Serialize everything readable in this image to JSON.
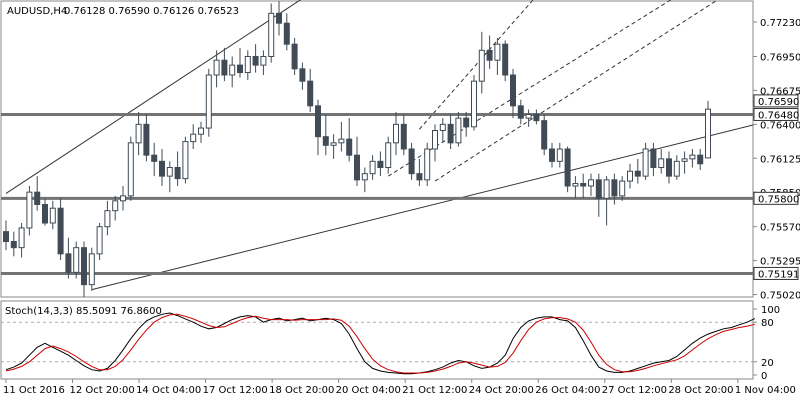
{
  "symbol_label": "AUDUSD,H4",
  "ohlc_label": "0.76128 0.76590 0.76126 0.76523",
  "indicator_label": "Stoch(14,3,3) 85.5091 76.8600",
  "chart_data": [
    {
      "type": "candlestick",
      "title": "AUDUSD,H4",
      "ylim": [
        0.75,
        0.774
      ],
      "y_ticks": [
        "0.77230",
        "0.76950",
        "0.76675",
        "0.76400",
        "0.76125",
        "0.75850",
        "0.75570",
        "0.75295",
        "0.75020"
      ],
      "x_ticks": [
        "11 Oct 2016",
        "12 Oct 20:00",
        "14 Oct 04:00",
        "17 Oct 12:00",
        "18 Oct 20:00",
        "20 Oct 04:00",
        "21 Oct 12:00",
        "24 Oct 20:00",
        "26 Oct 04:00",
        "27 Oct 12:00",
        "28 Oct 20:00",
        "1 Nov 04:00"
      ],
      "horizontal_levels": [
        {
          "label": "0.76480",
          "value": 0.7648
        },
        {
          "label": "0.75800",
          "value": 0.758
        },
        {
          "label": "0.75191",
          "value": 0.75191
        }
      ],
      "overlay_labels": [
        "0.76590"
      ],
      "colors": {
        "up": "#ffffff",
        "down": "#404b55",
        "outline": "#404b55",
        "level": "#737373"
      },
      "candles": [
        {
          "o": 0.7553,
          "h": 0.7562,
          "l": 0.7538,
          "c": 0.7545
        },
        {
          "o": 0.7545,
          "h": 0.7553,
          "l": 0.7533,
          "c": 0.754
        },
        {
          "o": 0.754,
          "h": 0.756,
          "l": 0.7532,
          "c": 0.7556
        },
        {
          "o": 0.7556,
          "h": 0.759,
          "l": 0.755,
          "c": 0.7585
        },
        {
          "o": 0.7585,
          "h": 0.7598,
          "l": 0.757,
          "c": 0.7575
        },
        {
          "o": 0.7575,
          "h": 0.758,
          "l": 0.7558,
          "c": 0.756
        },
        {
          "o": 0.756,
          "h": 0.7578,
          "l": 0.7555,
          "c": 0.7572
        },
        {
          "o": 0.7572,
          "h": 0.758,
          "l": 0.753,
          "c": 0.7535
        },
        {
          "o": 0.7535,
          "h": 0.7548,
          "l": 0.7515,
          "c": 0.752
        },
        {
          "o": 0.752,
          "h": 0.7545,
          "l": 0.7515,
          "c": 0.754
        },
        {
          "o": 0.754,
          "h": 0.7545,
          "l": 0.75,
          "c": 0.751
        },
        {
          "o": 0.751,
          "h": 0.754,
          "l": 0.7505,
          "c": 0.7535
        },
        {
          "o": 0.7535,
          "h": 0.756,
          "l": 0.753,
          "c": 0.7557
        },
        {
          "o": 0.7557,
          "h": 0.7578,
          "l": 0.755,
          "c": 0.757
        },
        {
          "o": 0.757,
          "h": 0.7582,
          "l": 0.7562,
          "c": 0.7578
        },
        {
          "o": 0.7578,
          "h": 0.759,
          "l": 0.757,
          "c": 0.7582
        },
        {
          "o": 0.7582,
          "h": 0.763,
          "l": 0.7578,
          "c": 0.7625
        },
        {
          "o": 0.7625,
          "h": 0.765,
          "l": 0.7615,
          "c": 0.764
        },
        {
          "o": 0.764,
          "h": 0.7648,
          "l": 0.761,
          "c": 0.7615
        },
        {
          "o": 0.7615,
          "h": 0.7625,
          "l": 0.7598,
          "c": 0.761
        },
        {
          "o": 0.761,
          "h": 0.762,
          "l": 0.759,
          "c": 0.7598
        },
        {
          "o": 0.7598,
          "h": 0.761,
          "l": 0.7585,
          "c": 0.7605
        },
        {
          "o": 0.7605,
          "h": 0.7618,
          "l": 0.759,
          "c": 0.7596
        },
        {
          "o": 0.7596,
          "h": 0.763,
          "l": 0.7592,
          "c": 0.7626
        },
        {
          "o": 0.7626,
          "h": 0.764,
          "l": 0.762,
          "c": 0.7632
        },
        {
          "o": 0.7632,
          "h": 0.7642,
          "l": 0.7625,
          "c": 0.7637
        },
        {
          "o": 0.7637,
          "h": 0.7685,
          "l": 0.763,
          "c": 0.768
        },
        {
          "o": 0.768,
          "h": 0.77,
          "l": 0.767,
          "c": 0.7692
        },
        {
          "o": 0.7692,
          "h": 0.7702,
          "l": 0.7675,
          "c": 0.768
        },
        {
          "o": 0.768,
          "h": 0.7695,
          "l": 0.767,
          "c": 0.7688
        },
        {
          "o": 0.7688,
          "h": 0.7702,
          "l": 0.7678,
          "c": 0.7682
        },
        {
          "o": 0.7682,
          "h": 0.77,
          "l": 0.7676,
          "c": 0.7695
        },
        {
          "o": 0.7695,
          "h": 0.7705,
          "l": 0.7682,
          "c": 0.7688
        },
        {
          "o": 0.7688,
          "h": 0.77,
          "l": 0.768,
          "c": 0.7695
        },
        {
          "o": 0.7695,
          "h": 0.7738,
          "l": 0.769,
          "c": 0.773
        },
        {
          "o": 0.773,
          "h": 0.774,
          "l": 0.7712,
          "c": 0.7722
        },
        {
          "o": 0.7722,
          "h": 0.773,
          "l": 0.77,
          "c": 0.7705
        },
        {
          "o": 0.7705,
          "h": 0.771,
          "l": 0.768,
          "c": 0.7685
        },
        {
          "o": 0.7685,
          "h": 0.769,
          "l": 0.7668,
          "c": 0.7675
        },
        {
          "o": 0.7675,
          "h": 0.7685,
          "l": 0.765,
          "c": 0.7655
        },
        {
          "o": 0.7655,
          "h": 0.766,
          "l": 0.7615,
          "c": 0.763
        },
        {
          "o": 0.763,
          "h": 0.7648,
          "l": 0.7615,
          "c": 0.7623
        },
        {
          "o": 0.7623,
          "h": 0.7632,
          "l": 0.7612,
          "c": 0.7625
        },
        {
          "o": 0.7625,
          "h": 0.7642,
          "l": 0.7618,
          "c": 0.7628
        },
        {
          "o": 0.7628,
          "h": 0.7645,
          "l": 0.761,
          "c": 0.7615
        },
        {
          "o": 0.7615,
          "h": 0.763,
          "l": 0.759,
          "c": 0.7595
        },
        {
          "o": 0.7595,
          "h": 0.7605,
          "l": 0.7585,
          "c": 0.76
        },
        {
          "o": 0.76,
          "h": 0.7615,
          "l": 0.7595,
          "c": 0.761
        },
        {
          "o": 0.761,
          "h": 0.7618,
          "l": 0.7598,
          "c": 0.7605
        },
        {
          "o": 0.7605,
          "h": 0.763,
          "l": 0.76,
          "c": 0.7625
        },
        {
          "o": 0.7625,
          "h": 0.765,
          "l": 0.7615,
          "c": 0.764
        },
        {
          "o": 0.764,
          "h": 0.7648,
          "l": 0.7615,
          "c": 0.762
        },
        {
          "o": 0.762,
          "h": 0.7625,
          "l": 0.7595,
          "c": 0.76
        },
        {
          "o": 0.76,
          "h": 0.7612,
          "l": 0.759,
          "c": 0.7595
        },
        {
          "o": 0.7595,
          "h": 0.7625,
          "l": 0.759,
          "c": 0.762
        },
        {
          "o": 0.762,
          "h": 0.764,
          "l": 0.761,
          "c": 0.7635
        },
        {
          "o": 0.7635,
          "h": 0.7645,
          "l": 0.7625,
          "c": 0.764
        },
        {
          "o": 0.764,
          "h": 0.7648,
          "l": 0.762,
          "c": 0.7625
        },
        {
          "o": 0.7625,
          "h": 0.765,
          "l": 0.7622,
          "c": 0.7645
        },
        {
          "o": 0.7645,
          "h": 0.765,
          "l": 0.763,
          "c": 0.7638
        },
        {
          "o": 0.7638,
          "h": 0.768,
          "l": 0.7635,
          "c": 0.7675
        },
        {
          "o": 0.7675,
          "h": 0.7715,
          "l": 0.7665,
          "c": 0.77
        },
        {
          "o": 0.77,
          "h": 0.7712,
          "l": 0.7685,
          "c": 0.7692
        },
        {
          "o": 0.7692,
          "h": 0.771,
          "l": 0.768,
          "c": 0.7705
        },
        {
          "o": 0.7705,
          "h": 0.7708,
          "l": 0.7675,
          "c": 0.768
        },
        {
          "o": 0.768,
          "h": 0.7685,
          "l": 0.7645,
          "c": 0.7655
        },
        {
          "o": 0.7655,
          "h": 0.766,
          "l": 0.764,
          "c": 0.7645
        },
        {
          "o": 0.7645,
          "h": 0.7652,
          "l": 0.7638,
          "c": 0.7648
        },
        {
          "o": 0.7648,
          "h": 0.7652,
          "l": 0.764,
          "c": 0.7643
        },
        {
          "o": 0.7643,
          "h": 0.7648,
          "l": 0.7615,
          "c": 0.762
        },
        {
          "o": 0.762,
          "h": 0.7625,
          "l": 0.7605,
          "c": 0.761
        },
        {
          "o": 0.761,
          "h": 0.7625,
          "l": 0.7605,
          "c": 0.762
        },
        {
          "o": 0.762,
          "h": 0.7622,
          "l": 0.7585,
          "c": 0.759
        },
        {
          "o": 0.759,
          "h": 0.7598,
          "l": 0.758,
          "c": 0.7592
        },
        {
          "o": 0.7592,
          "h": 0.76,
          "l": 0.758,
          "c": 0.759
        },
        {
          "o": 0.759,
          "h": 0.76,
          "l": 0.7582,
          "c": 0.7595
        },
        {
          "o": 0.7595,
          "h": 0.76,
          "l": 0.7565,
          "c": 0.758
        },
        {
          "o": 0.758,
          "h": 0.7598,
          "l": 0.7558,
          "c": 0.7595
        },
        {
          "o": 0.7595,
          "h": 0.76,
          "l": 0.7575,
          "c": 0.7582
        },
        {
          "o": 0.7582,
          "h": 0.7598,
          "l": 0.7578,
          "c": 0.7594
        },
        {
          "o": 0.7594,
          "h": 0.7608,
          "l": 0.7588,
          "c": 0.7602
        },
        {
          "o": 0.7602,
          "h": 0.7612,
          "l": 0.7592,
          "c": 0.7598
        },
        {
          "o": 0.7598,
          "h": 0.7625,
          "l": 0.7595,
          "c": 0.762
        },
        {
          "o": 0.762,
          "h": 0.7625,
          "l": 0.7598,
          "c": 0.7605
        },
        {
          "o": 0.7605,
          "h": 0.762,
          "l": 0.76,
          "c": 0.7612
        },
        {
          "o": 0.7612,
          "h": 0.7618,
          "l": 0.7592,
          "c": 0.7598
        },
        {
          "o": 0.7598,
          "h": 0.7615,
          "l": 0.7595,
          "c": 0.761
        },
        {
          "o": 0.761,
          "h": 0.7618,
          "l": 0.76,
          "c": 0.7612
        },
        {
          "o": 0.7612,
          "h": 0.762,
          "l": 0.7605,
          "c": 0.7615
        },
        {
          "o": 0.7615,
          "h": 0.762,
          "l": 0.7603,
          "c": 0.7608
        },
        {
          "o": 0.76128,
          "h": 0.7659,
          "l": 0.76126,
          "c": 0.76523
        }
      ],
      "trendlines": [
        {
          "style": "solid",
          "points": [
            [
              0,
              0.7584
            ],
            [
              38,
              0.7742
            ]
          ]
        },
        {
          "style": "solid",
          "points": [
            [
              11,
              0.7506
            ],
            [
              112,
              0.7665
            ]
          ]
        },
        {
          "style": "dashed",
          "points": [
            [
              49,
              0.7598
            ],
            [
              86,
              0.7744
            ]
          ]
        },
        {
          "style": "dashed",
          "points": [
            [
              55,
              0.7594
            ],
            [
              92,
              0.7744
            ]
          ]
        },
        {
          "style": "dashed",
          "points": [
            [
              53,
              0.7636
            ],
            [
              68,
              0.7744
            ]
          ]
        }
      ]
    },
    {
      "type": "line",
      "title": "Stoch(14,3,3) 85.5091 76.8600",
      "ylim": [
        0,
        100
      ],
      "y_ticks": [
        "100",
        "80",
        "20",
        "0"
      ],
      "levels": [
        80,
        20
      ],
      "series": [
        {
          "name": "",
          "color": "#000000",
          "values": [
            8,
            12,
            18,
            30,
            42,
            48,
            42,
            36,
            30,
            22,
            14,
            8,
            6,
            10,
            22,
            38,
            55,
            70,
            82,
            88,
            92,
            94,
            90,
            85,
            80,
            74,
            70,
            72,
            78,
            84,
            88,
            90,
            88,
            80,
            84,
            86,
            82,
            84,
            86,
            82,
            84,
            86,
            84,
            78,
            62,
            40,
            20,
            10,
            6,
            4,
            3,
            2,
            2,
            3,
            5,
            8,
            12,
            18,
            22,
            20,
            14,
            10,
            12,
            18,
            30,
            55,
            72,
            82,
            86,
            88,
            88,
            84,
            82,
            72,
            52,
            30,
            12,
            6,
            4,
            4,
            6,
            10,
            14,
            18,
            20,
            22,
            28,
            38,
            48,
            56,
            62,
            66,
            70,
            72,
            76,
            80,
            85.5
          ]
        },
        {
          "name": "",
          "color": "#cc0000",
          "values": [
            6,
            9,
            13,
            20,
            30,
            40,
            44,
            40,
            35,
            28,
            20,
            13,
            8,
            8,
            13,
            23,
            38,
            54,
            68,
            80,
            87,
            91,
            92,
            89,
            85,
            80,
            75,
            72,
            73,
            78,
            83,
            87,
            89,
            86,
            84,
            84,
            84,
            83,
            84,
            84,
            84,
            84,
            85,
            83,
            74,
            58,
            40,
            24,
            14,
            8,
            5,
            3,
            3,
            3,
            4,
            6,
            9,
            13,
            18,
            20,
            18,
            15,
            12,
            13,
            19,
            33,
            52,
            69,
            80,
            85,
            87,
            87,
            85,
            80,
            68,
            50,
            30,
            16,
            8,
            5,
            5,
            7,
            10,
            14,
            17,
            20,
            23,
            29,
            38,
            47,
            55,
            61,
            66,
            69,
            72,
            74,
            76.86
          ]
        }
      ]
    }
  ]
}
